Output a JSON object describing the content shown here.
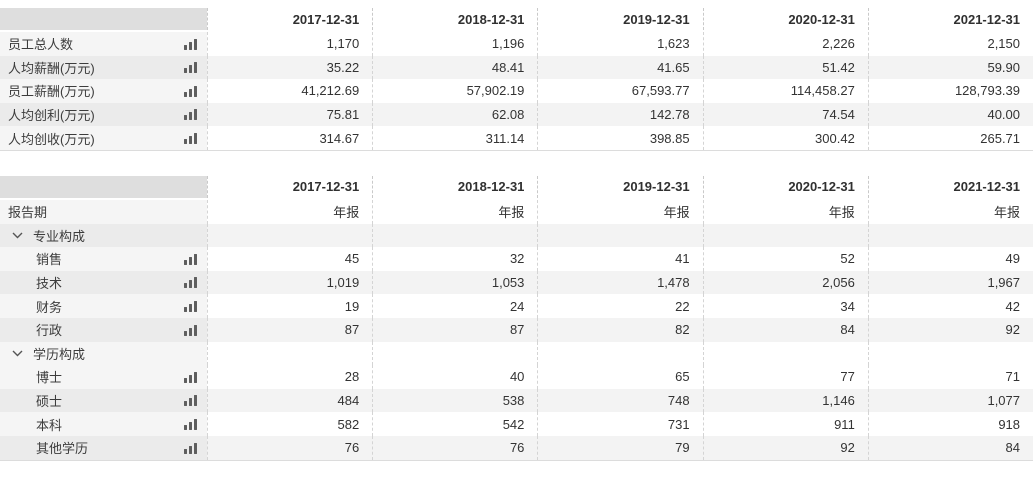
{
  "columns": [
    "2017-12-31",
    "2018-12-31",
    "2019-12-31",
    "2020-12-31",
    "2021-12-31"
  ],
  "icons": {
    "row_metric_icon": "bar-chart-icon",
    "group_toggle_icon": "chevron-down-icon"
  },
  "colors": {
    "header_bg": "#dedede",
    "stripe_data": "#f3f3f3",
    "stripe_label": "#ebebeb",
    "text": "#333333"
  },
  "table1": {
    "rows": [
      {
        "label": "员工总人数",
        "type": "metric",
        "icon": true,
        "shaded": false,
        "values": [
          "1,170",
          "1,196",
          "1,623",
          "2,226",
          "2,150"
        ]
      },
      {
        "label": "人均薪酬(万元)",
        "type": "metric",
        "icon": true,
        "shaded": true,
        "values": [
          "35.22",
          "48.41",
          "41.65",
          "51.42",
          "59.90"
        ]
      },
      {
        "label": "员工薪酬(万元)",
        "type": "metric",
        "icon": true,
        "shaded": false,
        "values": [
          "41,212.69",
          "57,902.19",
          "67,593.77",
          "114,458.27",
          "128,793.39"
        ]
      },
      {
        "label": "人均创利(万元)",
        "type": "metric",
        "icon": true,
        "shaded": true,
        "values": [
          "75.81",
          "62.08",
          "142.78",
          "74.54",
          "40.00"
        ]
      },
      {
        "label": "人均创收(万元)",
        "type": "metric",
        "icon": true,
        "shaded": false,
        "values": [
          "314.67",
          "311.14",
          "398.85",
          "300.42",
          "265.71"
        ]
      }
    ]
  },
  "table2": {
    "rows": [
      {
        "label": "报告期",
        "type": "metric",
        "icon": false,
        "shaded": false,
        "values": [
          "年报",
          "年报",
          "年报",
          "年报",
          "年报"
        ]
      },
      {
        "label": "专业构成",
        "type": "group",
        "icon": false,
        "shaded": true,
        "values": [
          "",
          "",
          "",
          "",
          ""
        ]
      },
      {
        "label": "销售",
        "type": "sub",
        "icon": true,
        "shaded": false,
        "values": [
          "45",
          "32",
          "41",
          "52",
          "49"
        ]
      },
      {
        "label": "技术",
        "type": "sub",
        "icon": true,
        "shaded": true,
        "values": [
          "1,019",
          "1,053",
          "1,478",
          "2,056",
          "1,967"
        ]
      },
      {
        "label": "财务",
        "type": "sub",
        "icon": true,
        "shaded": false,
        "values": [
          "19",
          "24",
          "22",
          "34",
          "42"
        ]
      },
      {
        "label": "行政",
        "type": "sub",
        "icon": true,
        "shaded": true,
        "values": [
          "87",
          "87",
          "82",
          "84",
          "92"
        ]
      },
      {
        "label": "学历构成",
        "type": "group",
        "icon": false,
        "shaded": false,
        "values": [
          "",
          "",
          "",
          "",
          ""
        ]
      },
      {
        "label": "博士",
        "type": "sub",
        "icon": true,
        "shaded": false,
        "values": [
          "28",
          "40",
          "65",
          "77",
          "71"
        ]
      },
      {
        "label": "硕士",
        "type": "sub",
        "icon": true,
        "shaded": true,
        "values": [
          "484",
          "538",
          "748",
          "1,146",
          "1,077"
        ]
      },
      {
        "label": "本科",
        "type": "sub",
        "icon": true,
        "shaded": false,
        "values": [
          "582",
          "542",
          "731",
          "911",
          "918"
        ]
      },
      {
        "label": "其他学历",
        "type": "sub",
        "icon": true,
        "shaded": true,
        "values": [
          "76",
          "76",
          "79",
          "92",
          "84"
        ]
      }
    ]
  }
}
